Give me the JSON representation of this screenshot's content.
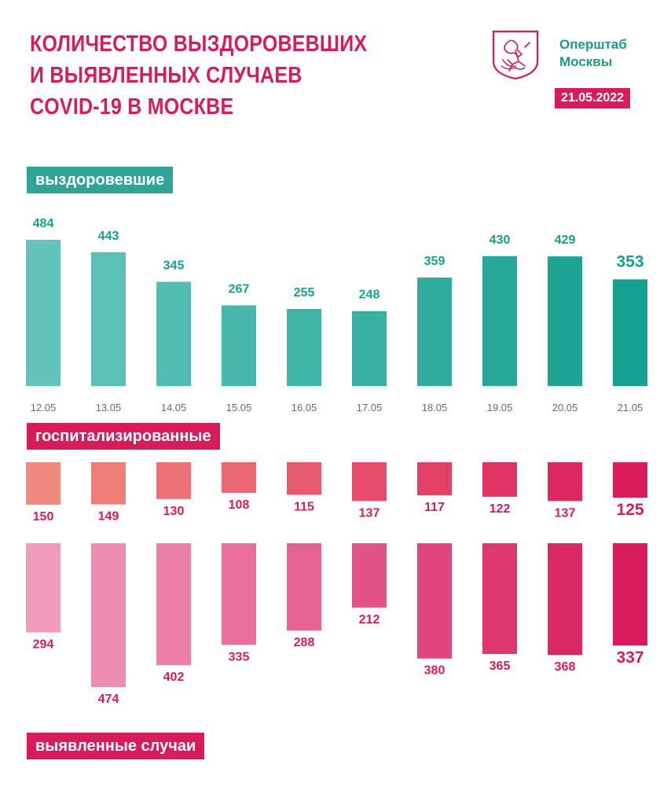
{
  "header": {
    "title_lines": [
      "КОЛИЧЕСТВО ВЫЗДОРОВЕВШИХ",
      "И ВЫЯВЛЕННЫХ СЛУЧАЕВ",
      "COVID-19 В МОСКВЕ"
    ],
    "org_lines": [
      "Оперштаб",
      "Москвы"
    ],
    "date": "21.05.2022",
    "emblem_icon": "moscow-coat-of-arms-icon"
  },
  "labels": {
    "recovered": "выздоровевшие",
    "hospitalized": "госпитализированные",
    "cases": "выявленные случаи"
  },
  "colors": {
    "teal_light": "#62c4bb",
    "teal_dark": "#16a08f",
    "pink_light": "#f08a7e",
    "pink_dark": "#dc1d5a",
    "cases_light": "#f19bbd",
    "cases_dark": "#d81b5a",
    "brand": "#d81b5a",
    "teal_label": "#2ea597"
  },
  "chart_data": [
    {
      "type": "bar",
      "name": "выздоровевшие",
      "categories": [
        "12.05",
        "13.05",
        "14.05",
        "15.05",
        "16.05",
        "17.05",
        "18.05",
        "19.05",
        "20.05",
        "21.05"
      ],
      "values": [
        484,
        443,
        345,
        267,
        255,
        248,
        359,
        430,
        429,
        353
      ],
      "value_labels": [
        "484",
        "443",
        "345",
        "267",
        "255",
        "248",
        "359",
        "430",
        "429",
        "353"
      ],
      "direction": "up"
    },
    {
      "type": "bar",
      "name": "госпитализированные",
      "categories": [
        "12.05",
        "13.05",
        "14.05",
        "15.05",
        "16.05",
        "17.05",
        "18.05",
        "19.05",
        "20.05",
        "21.05"
      ],
      "values": [
        150,
        149,
        130,
        108,
        115,
        137,
        117,
        122,
        137,
        125
      ],
      "value_labels": [
        "150",
        "149",
        "130",
        "108",
        "115",
        "137",
        "117",
        "122",
        "137",
        "125"
      ],
      "direction": "down"
    },
    {
      "type": "bar",
      "name": "выявленные случаи",
      "categories": [
        "12.05",
        "13.05",
        "14.05",
        "15.05",
        "16.05",
        "17.05",
        "18.05",
        "19.05",
        "20.05",
        "21.05"
      ],
      "values": [
        294,
        474,
        402,
        335,
        288,
        212,
        380,
        365,
        368,
        337
      ],
      "value_labels": [
        "294",
        "474",
        "402",
        "335",
        "288",
        "212",
        "380",
        "365",
        "368",
        "337"
      ],
      "direction": "down"
    }
  ]
}
